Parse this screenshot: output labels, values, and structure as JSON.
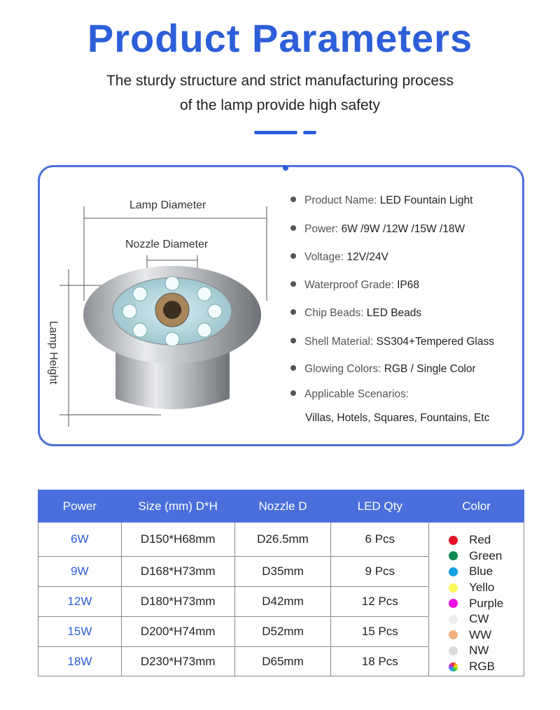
{
  "header": {
    "title": "Product Parameters",
    "subtitle_line1": "The sturdy structure and strict manufacturing process",
    "subtitle_line2": "of the lamp provide high safety",
    "accent": "#2c5fd9"
  },
  "diagram": {
    "lamp_diameter": "Lamp Diameter",
    "nozzle_diameter": "Nozzle Diameter",
    "lamp_height": "Lamp Height"
  },
  "specs": [
    {
      "label": "Product Name: ",
      "value": "LED Fountain Light"
    },
    {
      "label": "Power: ",
      "value": "6W /9W /12W /15W /18W"
    },
    {
      "label": "Voltage: ",
      "value": "12V/24V"
    },
    {
      "label": "Waterproof Grade: ",
      "value": "IP68"
    },
    {
      "label": "Chip Beads: ",
      "value": "LED Beads"
    },
    {
      "label": "Shell Material: ",
      "value": "SS304+Tempered Glass"
    },
    {
      "label": "Glowing Colors: ",
      "value": "RGB / Single Color"
    },
    {
      "label": "Applicable Scenarios:",
      "value": ""
    }
  ],
  "scenarios": "Villas, Hotels, Squares, Fountains, Etc",
  "table": {
    "headers": [
      "Power",
      "Size (mm) D*H",
      "Nozzle D",
      "LED Qty",
      "Color"
    ],
    "rows": [
      [
        "6W",
        "D150*H68mm",
        "D26.5mm",
        "6 Pcs"
      ],
      [
        "9W",
        "D168*H73mm",
        "D35mm",
        "9 Pcs"
      ],
      [
        "12W",
        "D180*H73mm",
        "D42mm",
        "12 Pcs"
      ],
      [
        "15W",
        "D200*H74mm",
        "D52mm",
        "15 Pcs"
      ],
      [
        "18W",
        "D230*H73mm",
        "D65mm",
        "18 Pcs"
      ]
    ],
    "colors": [
      {
        "name": "Red",
        "hex": "#e8132b"
      },
      {
        "name": "Green",
        "hex": "#0f8a4e"
      },
      {
        "name": "Blue",
        "hex": "#15a0e6"
      },
      {
        "name": "Yello",
        "hex": "#f7f75a"
      },
      {
        "name": "Purple",
        "hex": "#f00fe8"
      },
      {
        "name": "CW",
        "hex": "#ececec"
      },
      {
        "name": "WW",
        "hex": "#f2b07f"
      },
      {
        "name": "NW",
        "hex": "#dcdcdc"
      },
      {
        "name": "RGB",
        "hex": "conic"
      }
    ]
  }
}
